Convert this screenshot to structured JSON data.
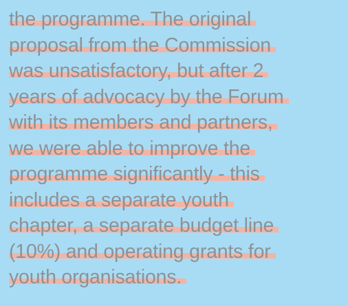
{
  "paragraph": {
    "lines": [
      "the programme. The original",
      "proposal from the Commission",
      "was unsatisfactory, but after 2",
      "years of advocacy by the Forum",
      "with its members and partners,",
      "we were able to improve the",
      "programme significantly - this",
      "includes a separate youth",
      "chapter, a separate budget line",
      "(10%) and operating grants for",
      "youth organisations."
    ]
  }
}
